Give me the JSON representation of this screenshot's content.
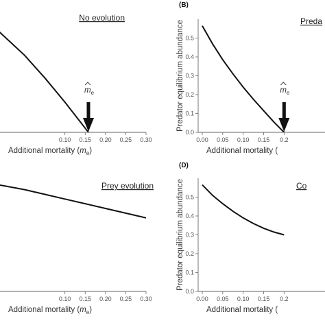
{
  "chart_data": [
    {
      "panel": "A",
      "letter": "",
      "type": "line",
      "title": "No evolution",
      "xlabel_main": "Additional mortality (",
      "xlabel_var": "m",
      "xlabel_sub": "e",
      "xlabel_end": ")",
      "ylabel": "",
      "xlim": [
        -0.06,
        0.3
      ],
      "ylim": [
        0,
        0.6
      ],
      "xticks": [
        "0.10",
        "0.15",
        "0.20",
        "0.25",
        "0.30"
      ],
      "yticks": [],
      "series": [
        {
          "x": [
            -0.09,
            0.0,
            0.05,
            0.1,
            0.158
          ],
          "y": [
            0.59,
            0.41,
            0.29,
            0.16,
            0.0
          ]
        }
      ],
      "annotation": {
        "label": "m",
        "sub": "e",
        "x": 0.158
      }
    },
    {
      "panel": "B",
      "letter": "(B)",
      "type": "line",
      "title": "Preda",
      "xlabel_main": "Additional mortality (",
      "xlabel_var": "",
      "xlabel_sub": "",
      "xlabel_end": "",
      "ylabel": "Predator  equilibrium abundance",
      "xlim": [
        -0.01,
        0.3
      ],
      "ylim": [
        0,
        0.6
      ],
      "xticks": [
        "0.00",
        "0.05",
        "0.10",
        "0.15",
        "0.2"
      ],
      "yticks": [
        "0.0",
        "0.1",
        "0.2",
        "0.3",
        "0.4",
        "0.5"
      ],
      "series": [
        {
          "x": [
            0.0,
            0.025,
            0.05,
            0.075,
            0.1,
            0.125,
            0.15,
            0.175,
            0.2
          ],
          "y": [
            0.565,
            0.47,
            0.385,
            0.31,
            0.24,
            0.175,
            0.115,
            0.055,
            0.0
          ]
        }
      ],
      "annotation": {
        "label": "m",
        "sub": "e",
        "x": 0.2
      }
    },
    {
      "panel": "C",
      "letter": "",
      "type": "line",
      "title": "Prey evolution",
      "xlabel_main": "Additional mortality (",
      "xlabel_var": "m",
      "xlabel_sub": "e",
      "xlabel_end": ")",
      "ylabel": "",
      "xlim": [
        -0.06,
        0.3
      ],
      "ylim": [
        0,
        0.6
      ],
      "xticks": [
        "0.10",
        "0.15",
        "0.20",
        "0.25",
        "0.30"
      ],
      "yticks": [],
      "series": [
        {
          "x": [
            -0.09,
            -0.05,
            0.0,
            0.05,
            0.1,
            0.15,
            0.2,
            0.25,
            0.3
          ],
          "y": [
            0.575,
            0.56,
            0.54,
            0.515,
            0.49,
            0.465,
            0.44,
            0.415,
            0.39
          ]
        }
      ]
    },
    {
      "panel": "D",
      "letter": "(D)",
      "type": "line",
      "title": "Co",
      "xlabel_main": "Additional mortality (",
      "xlabel_var": "",
      "xlabel_sub": "",
      "xlabel_end": "",
      "ylabel": "Predator  equilibrium abundance",
      "xlim": [
        -0.01,
        0.3
      ],
      "ylim": [
        0,
        0.6
      ],
      "xticks": [
        "0.00",
        "0.05",
        "0.10",
        "0.15",
        "0.2"
      ],
      "yticks": [
        "0.0",
        "0.1",
        "0.2",
        "0.3",
        "0.4",
        "0.5"
      ],
      "series": [
        {
          "x": [
            0.0,
            0.025,
            0.05,
            0.075,
            0.1,
            0.125,
            0.15,
            0.175,
            0.2
          ],
          "y": [
            0.565,
            0.51,
            0.465,
            0.425,
            0.39,
            0.36,
            0.335,
            0.315,
            0.3
          ]
        }
      ]
    }
  ]
}
